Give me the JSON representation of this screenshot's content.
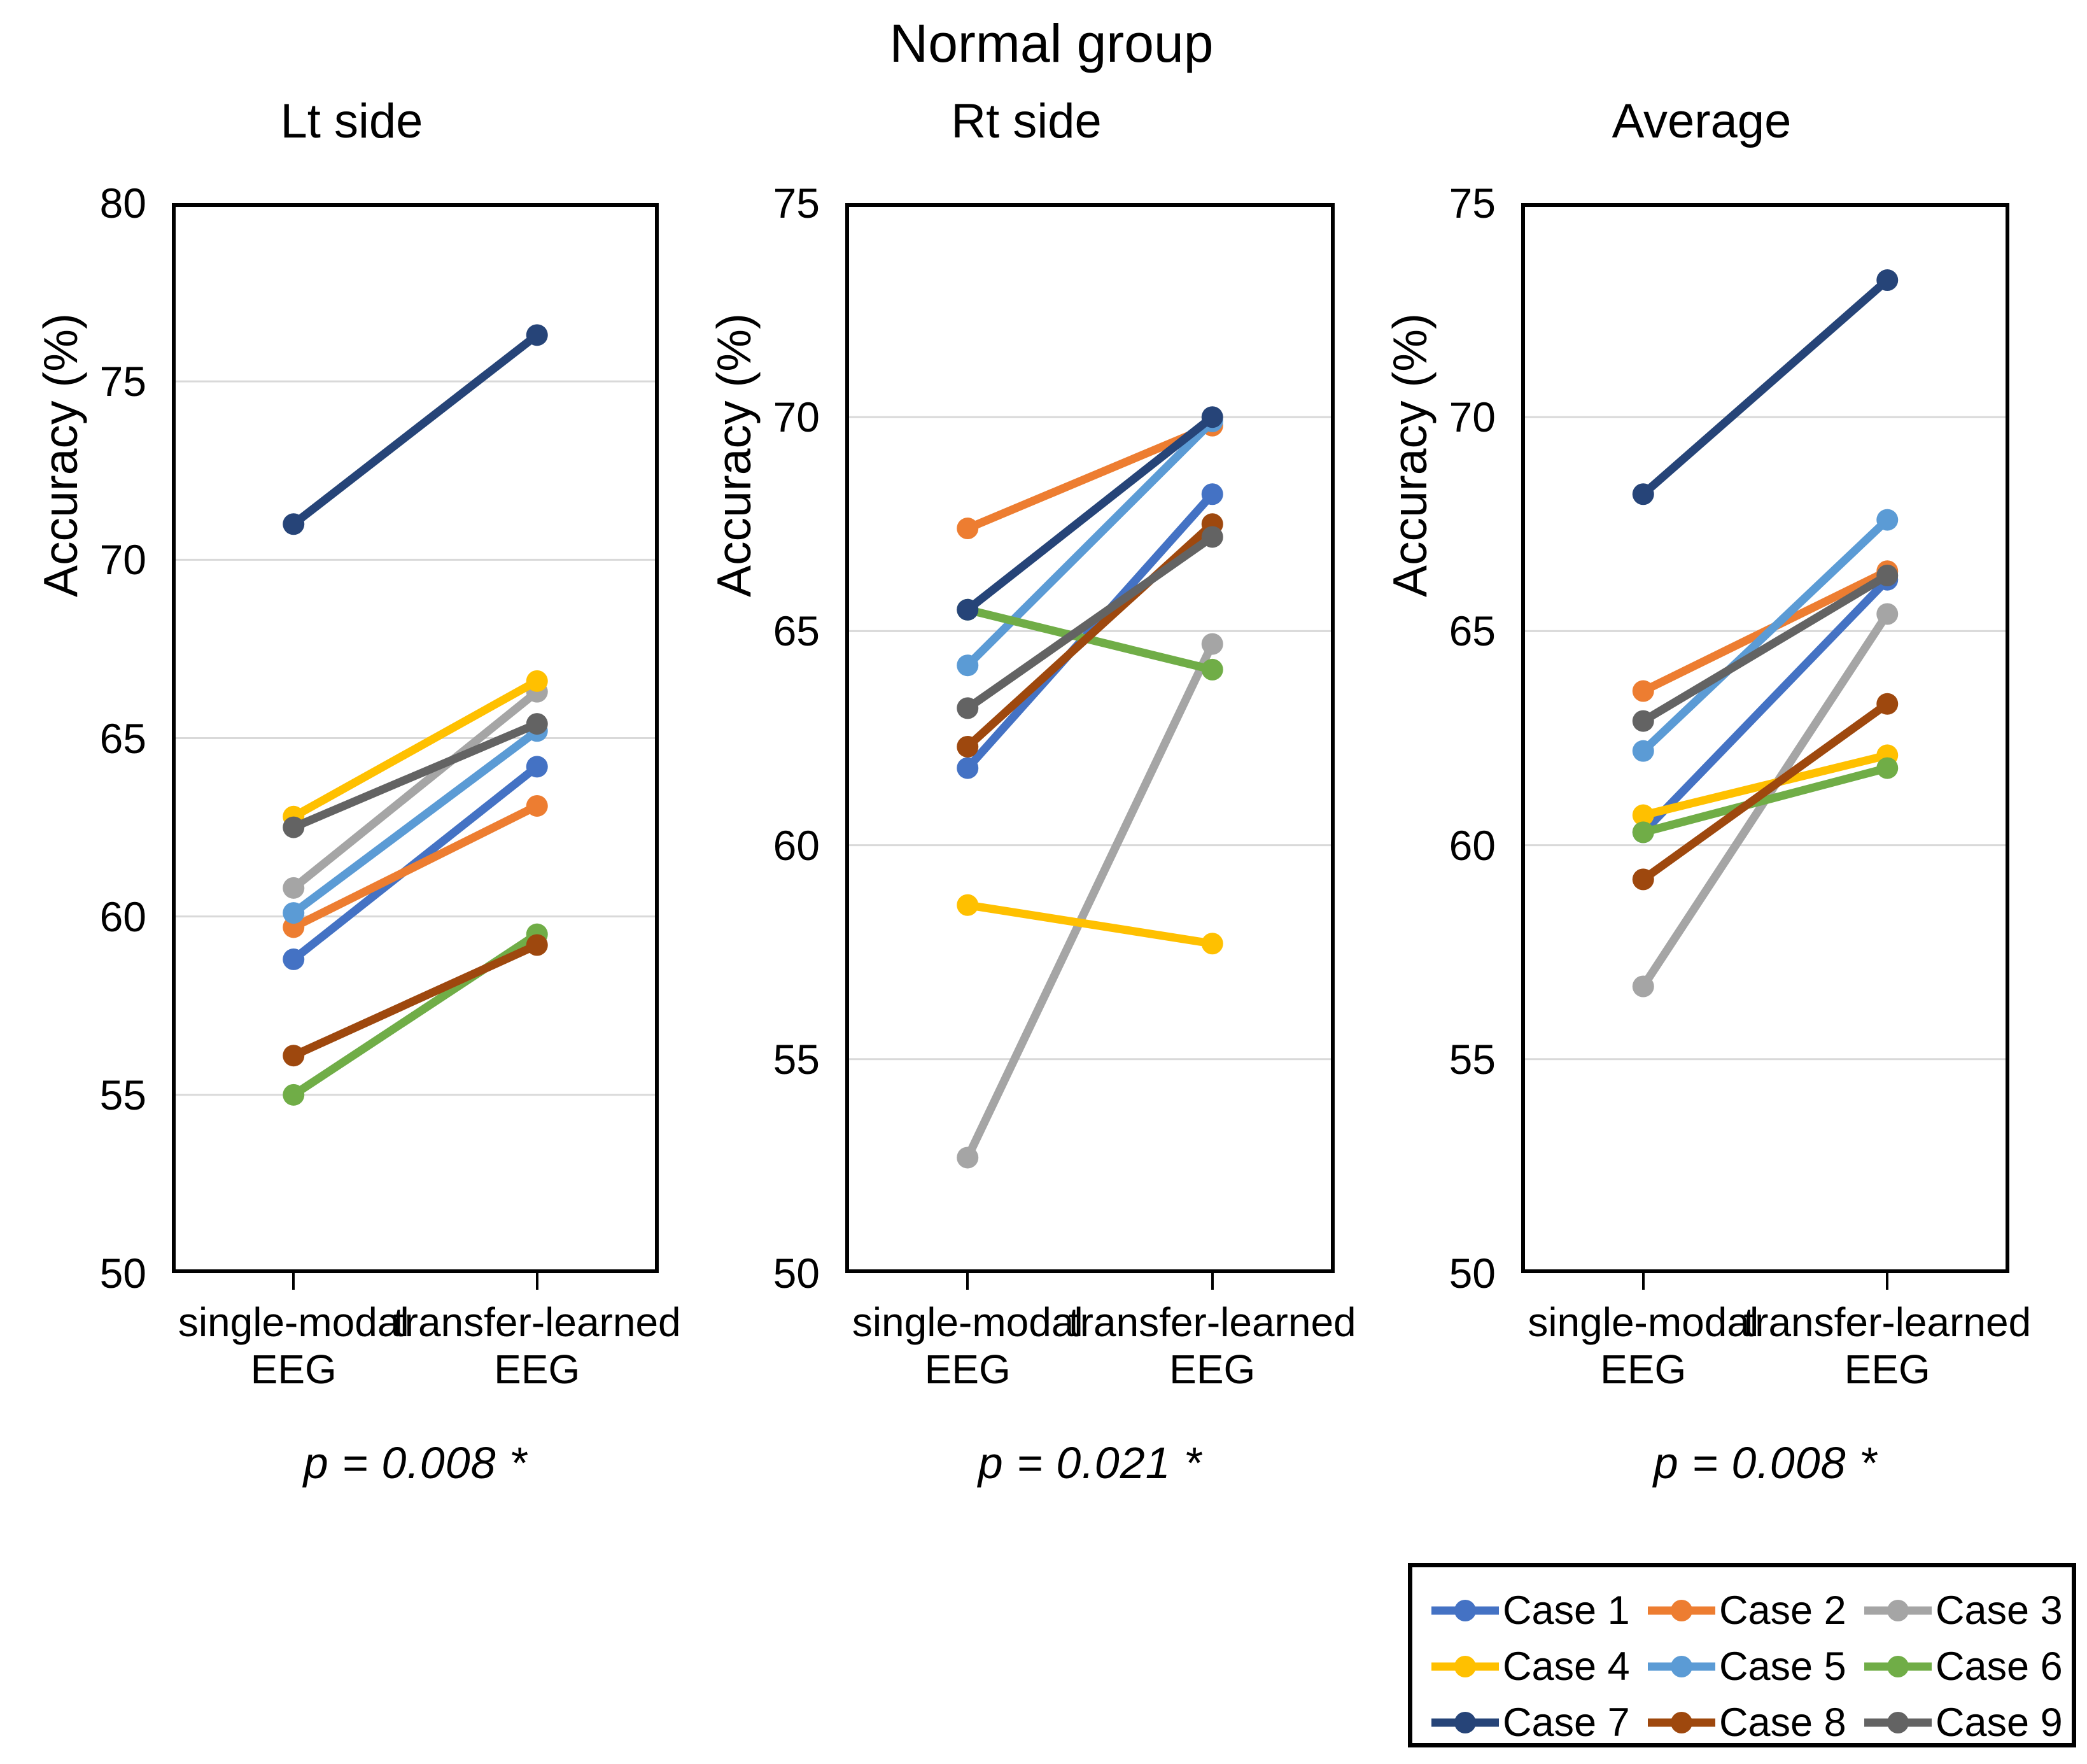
{
  "title": "Normal group",
  "legend": {
    "position": "bottom-right",
    "entries": [
      "Case 1",
      "Case 2",
      "Case 3",
      "Case 4",
      "Case 5",
      "Case 6",
      "Case 7",
      "Case 8",
      "Case 9"
    ]
  },
  "colors": {
    "grid": "#D9D9D9",
    "axis": "#000000"
  },
  "chart_data": [
    {
      "type": "line",
      "title": "Lt side",
      "ylabel": "Accuracy (%)",
      "ylim": [
        50,
        80
      ],
      "yticks": [
        80,
        75,
        70,
        65,
        60,
        55,
        50
      ],
      "grid": "horizontal",
      "legend_position": "none",
      "categories": [
        "single-modal EEG",
        "transfer-learned EEG"
      ],
      "category_label_lines": [
        [
          "single-modal",
          "EEG"
        ],
        [
          "transfer-learned",
          "EEG"
        ]
      ],
      "p_label": "p = 0.008 *",
      "series": [
        {
          "name": "Case 1",
          "color": "#4472C4",
          "values": [
            58.8,
            64.2
          ]
        },
        {
          "name": "Case 2",
          "color": "#ED7D31",
          "values": [
            59.7,
            63.1
          ]
        },
        {
          "name": "Case 3",
          "color": "#A5A5A5",
          "values": [
            60.8,
            66.3
          ]
        },
        {
          "name": "Case 4",
          "color": "#FFC000",
          "values": [
            62.8,
            66.6
          ]
        },
        {
          "name": "Case 5",
          "color": "#5B9BD5",
          "values": [
            60.1,
            65.2
          ]
        },
        {
          "name": "Case 6",
          "color": "#70AD47",
          "values": [
            55.0,
            59.5
          ]
        },
        {
          "name": "Case 7",
          "color": "#264478",
          "values": [
            71.0,
            76.3
          ]
        },
        {
          "name": "Case 8",
          "color": "#9E480E",
          "values": [
            56.1,
            59.2
          ]
        },
        {
          "name": "Case 9",
          "color": "#636363",
          "values": [
            62.5,
            65.4
          ]
        }
      ]
    },
    {
      "type": "line",
      "title": "Rt side",
      "ylabel": "Accuracy (%)",
      "ylim": [
        50,
        75
      ],
      "yticks": [
        75,
        70,
        65,
        60,
        55,
        50
      ],
      "grid": "horizontal",
      "legend_position": "none",
      "categories": [
        "single-modal EEG",
        "transfer-learned EEG"
      ],
      "category_label_lines": [
        [
          "single-modal",
          "EEG"
        ],
        [
          "transfer-learned",
          "EEG"
        ]
      ],
      "p_label": "p = 0.021 *",
      "series": [
        {
          "name": "Case 1",
          "color": "#4472C4",
          "values": [
            61.8,
            68.2
          ]
        },
        {
          "name": "Case 2",
          "color": "#ED7D31",
          "values": [
            67.4,
            69.8
          ]
        },
        {
          "name": "Case 3",
          "color": "#A5A5A5",
          "values": [
            52.7,
            64.7
          ]
        },
        {
          "name": "Case 4",
          "color": "#FFC000",
          "values": [
            58.6,
            57.7
          ]
        },
        {
          "name": "Case 5",
          "color": "#5B9BD5",
          "values": [
            64.2,
            69.9
          ]
        },
        {
          "name": "Case 6",
          "color": "#70AD47",
          "values": [
            65.5,
            64.1
          ]
        },
        {
          "name": "Case 7",
          "color": "#264478",
          "values": [
            65.5,
            70.0
          ]
        },
        {
          "name": "Case 8",
          "color": "#9E480E",
          "values": [
            62.3,
            67.5
          ]
        },
        {
          "name": "Case 9",
          "color": "#636363",
          "values": [
            63.2,
            67.2
          ]
        }
      ]
    },
    {
      "type": "line",
      "title": "Average",
      "ylabel": "Accuracy (%)",
      "ylim": [
        50,
        75
      ],
      "yticks": [
        75,
        70,
        65,
        60,
        55,
        50
      ],
      "grid": "horizontal",
      "legend_position": "none",
      "categories": [
        "single-modal EEG",
        "transfer-learned EEG"
      ],
      "category_label_lines": [
        [
          "single-modal",
          "EEG"
        ],
        [
          "transfer-learned",
          "EEG"
        ]
      ],
      "p_label": "p = 0.008 *",
      "series": [
        {
          "name": "Case 1",
          "color": "#4472C4",
          "values": [
            60.3,
            66.2
          ]
        },
        {
          "name": "Case 2",
          "color": "#ED7D31",
          "values": [
            63.6,
            66.4
          ]
        },
        {
          "name": "Case 3",
          "color": "#A5A5A5",
          "values": [
            56.7,
            65.4
          ]
        },
        {
          "name": "Case 4",
          "color": "#FFC000",
          "values": [
            60.7,
            62.1
          ]
        },
        {
          "name": "Case 5",
          "color": "#5B9BD5",
          "values": [
            62.2,
            67.6
          ]
        },
        {
          "name": "Case 6",
          "color": "#70AD47",
          "values": [
            60.3,
            61.8
          ]
        },
        {
          "name": "Case 7",
          "color": "#264478",
          "values": [
            68.2,
            73.2
          ]
        },
        {
          "name": "Case 8",
          "color": "#9E480E",
          "values": [
            59.2,
            63.3
          ]
        },
        {
          "name": "Case 9",
          "color": "#636363",
          "values": [
            62.9,
            66.3
          ]
        }
      ]
    }
  ]
}
